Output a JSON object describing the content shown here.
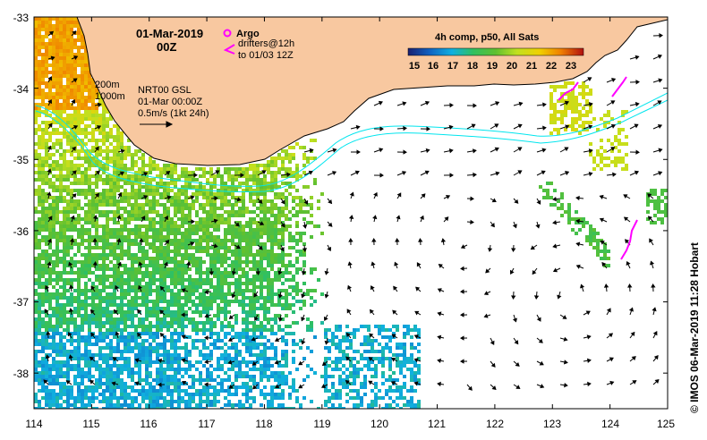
{
  "header": {
    "date": "01-Mar-2019",
    "time": "00Z"
  },
  "legend": {
    "argo_label": "Argo",
    "drifters_line1": "drifters@12h",
    "drifters_line2": "to 01/03 12Z",
    "contour_200": "200m",
    "contour_1000": "1000m",
    "product": "NRT00 GSL",
    "product_time": "01-Mar 00:00Z",
    "scale_label": "0.5m/s (1kt 24h)"
  },
  "colorbar": {
    "title": "4h comp, p50, All Sats",
    "ticks": [
      "15",
      "16",
      "17",
      "18",
      "19",
      "20",
      "21",
      "22",
      "23"
    ]
  },
  "axes": {
    "x_ticks": [
      "114",
      "115",
      "116",
      "117",
      "118",
      "119",
      "120",
      "121",
      "122",
      "123",
      "124",
      "125"
    ],
    "y_ticks": [
      "-33",
      "-34",
      "-35",
      "-36",
      "-37",
      "-38"
    ],
    "x_range": [
      114,
      125
    ],
    "y_range": [
      -38.5,
      -33
    ]
  },
  "credit": "©  IMOS 06-Mar-2019 11:28 Hobart",
  "colors": {
    "land": "#f8c8a0",
    "isobath": "#00e5ee",
    "argo": "#ff00ff",
    "drifter": "#ff00ff"
  }
}
